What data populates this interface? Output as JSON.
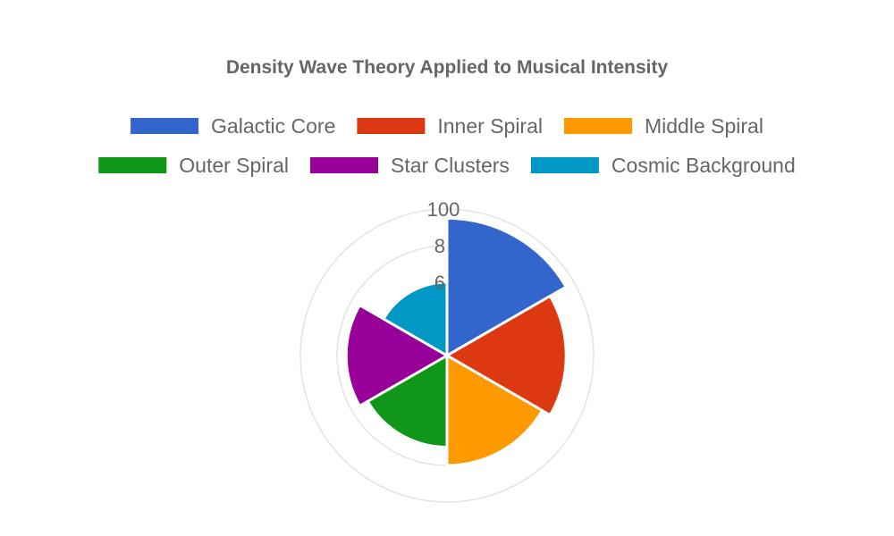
{
  "chart_data": {
    "type": "polarArea",
    "title": "Density Wave Theory Applied to Musical Intensity",
    "categories": [
      "Galactic Core",
      "Inner Spiral",
      "Middle Spiral",
      "Outer Spiral",
      "Star Clusters",
      "Cosmic Background"
    ],
    "values": [
      95,
      85,
      80,
      70,
      75,
      60
    ],
    "colors": [
      "#3366cc",
      "#dc3912",
      "#ff9900",
      "#109618",
      "#990099",
      "#0099c6"
    ],
    "radial_axis": {
      "min": 20,
      "max": 100,
      "tick_labels": [
        "6",
        "8",
        "100"
      ]
    },
    "legend_position": "top",
    "grid": true
  }
}
